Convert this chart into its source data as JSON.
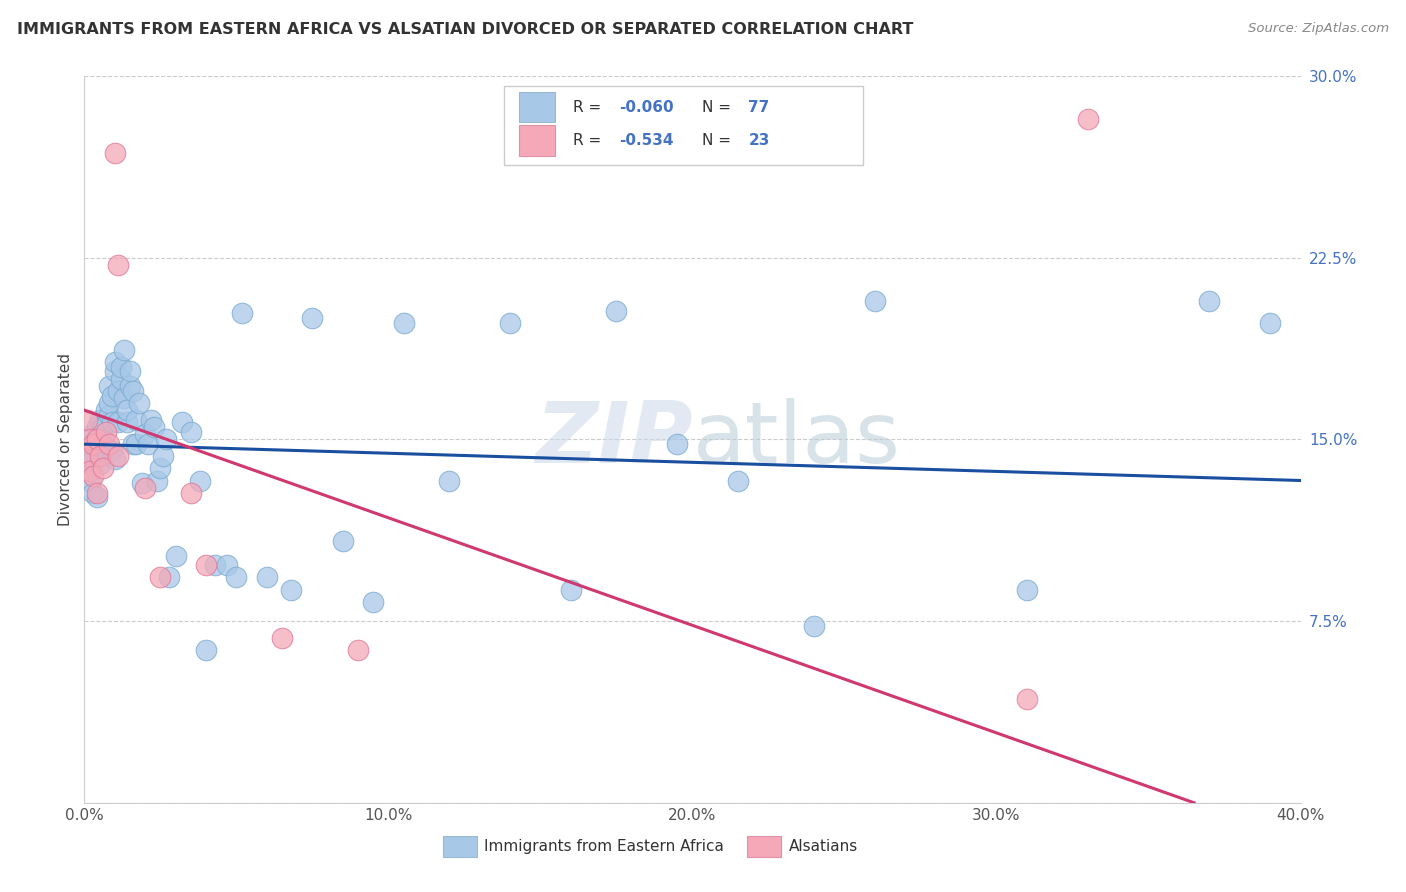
{
  "title": "IMMIGRANTS FROM EASTERN AFRICA VS ALSATIAN DIVORCED OR SEPARATED CORRELATION CHART",
  "source": "Source: ZipAtlas.com",
  "ylabel_label": "Divorced or Separated",
  "xlim": [
    0.0,
    0.4
  ],
  "ylim": [
    0.0,
    0.3
  ],
  "xticks": [
    0.0,
    0.1,
    0.2,
    0.3,
    0.4
  ],
  "yticks": [
    0.0,
    0.075,
    0.15,
    0.225,
    0.3
  ],
  "xtick_labels": [
    "0.0%",
    "10.0%",
    "20.0%",
    "30.0%",
    "40.0%"
  ],
  "ytick_labels_right": [
    "",
    "7.5%",
    "15.0%",
    "22.5%",
    "30.0%"
  ],
  "blue_color": "#a8c8e8",
  "pink_color": "#f4a8b8",
  "blue_edge_color": "#7aaad0",
  "pink_edge_color": "#e07898",
  "blue_line_color": "#1a4fa0",
  "pink_line_color": "#d03870",
  "watermark_color": "#ccd8e8",
  "title_color": "#333333",
  "source_color": "#888888",
  "axis_color": "#cccccc",
  "tick_color": "#555555",
  "right_tick_color": "#4472c4",
  "legend_R_color": "#4472c4",
  "blue_scatter_x": [
    0.001,
    0.001,
    0.002,
    0.002,
    0.003,
    0.003,
    0.003,
    0.004,
    0.004,
    0.005,
    0.005,
    0.005,
    0.006,
    0.006,
    0.007,
    0.007,
    0.007,
    0.008,
    0.008,
    0.008,
    0.009,
    0.009,
    0.009,
    0.01,
    0.01,
    0.01,
    0.011,
    0.011,
    0.012,
    0.012,
    0.013,
    0.013,
    0.014,
    0.014,
    0.015,
    0.015,
    0.016,
    0.016,
    0.017,
    0.017,
    0.018,
    0.019,
    0.02,
    0.021,
    0.022,
    0.023,
    0.024,
    0.025,
    0.026,
    0.027,
    0.028,
    0.03,
    0.032,
    0.035,
    0.038,
    0.04,
    0.043,
    0.047,
    0.052,
    0.06,
    0.068,
    0.075,
    0.085,
    0.095,
    0.105,
    0.12,
    0.14,
    0.16,
    0.175,
    0.195,
    0.215,
    0.24,
    0.26,
    0.31,
    0.37,
    0.39,
    0.05
  ],
  "blue_scatter_y": [
    0.143,
    0.137,
    0.148,
    0.133,
    0.152,
    0.128,
    0.142,
    0.155,
    0.126,
    0.145,
    0.14,
    0.158,
    0.15,
    0.155,
    0.162,
    0.147,
    0.145,
    0.16,
    0.165,
    0.172,
    0.157,
    0.168,
    0.145,
    0.178,
    0.182,
    0.142,
    0.17,
    0.157,
    0.175,
    0.18,
    0.167,
    0.187,
    0.157,
    0.162,
    0.172,
    0.178,
    0.17,
    0.148,
    0.148,
    0.158,
    0.165,
    0.132,
    0.152,
    0.148,
    0.158,
    0.155,
    0.133,
    0.138,
    0.143,
    0.15,
    0.093,
    0.102,
    0.157,
    0.153,
    0.133,
    0.063,
    0.098,
    0.098,
    0.202,
    0.093,
    0.088,
    0.2,
    0.108,
    0.083,
    0.198,
    0.133,
    0.198,
    0.088,
    0.203,
    0.148,
    0.133,
    0.073,
    0.207,
    0.088,
    0.207,
    0.198,
    0.093
  ],
  "pink_scatter_x": [
    0.001,
    0.001,
    0.002,
    0.002,
    0.003,
    0.003,
    0.004,
    0.004,
    0.005,
    0.006,
    0.007,
    0.008,
    0.01,
    0.011,
    0.011,
    0.02,
    0.025,
    0.035,
    0.04,
    0.065,
    0.09,
    0.31,
    0.33
  ],
  "pink_scatter_y": [
    0.143,
    0.158,
    0.137,
    0.15,
    0.135,
    0.148,
    0.128,
    0.15,
    0.143,
    0.138,
    0.153,
    0.148,
    0.268,
    0.222,
    0.143,
    0.13,
    0.093,
    0.128,
    0.098,
    0.068,
    0.063,
    0.043,
    0.282
  ],
  "blue_line_x": [
    0.0,
    0.4
  ],
  "blue_line_y": [
    0.148,
    0.133
  ],
  "pink_line_x": [
    0.0,
    0.365
  ],
  "pink_line_y": [
    0.162,
    0.0
  ]
}
